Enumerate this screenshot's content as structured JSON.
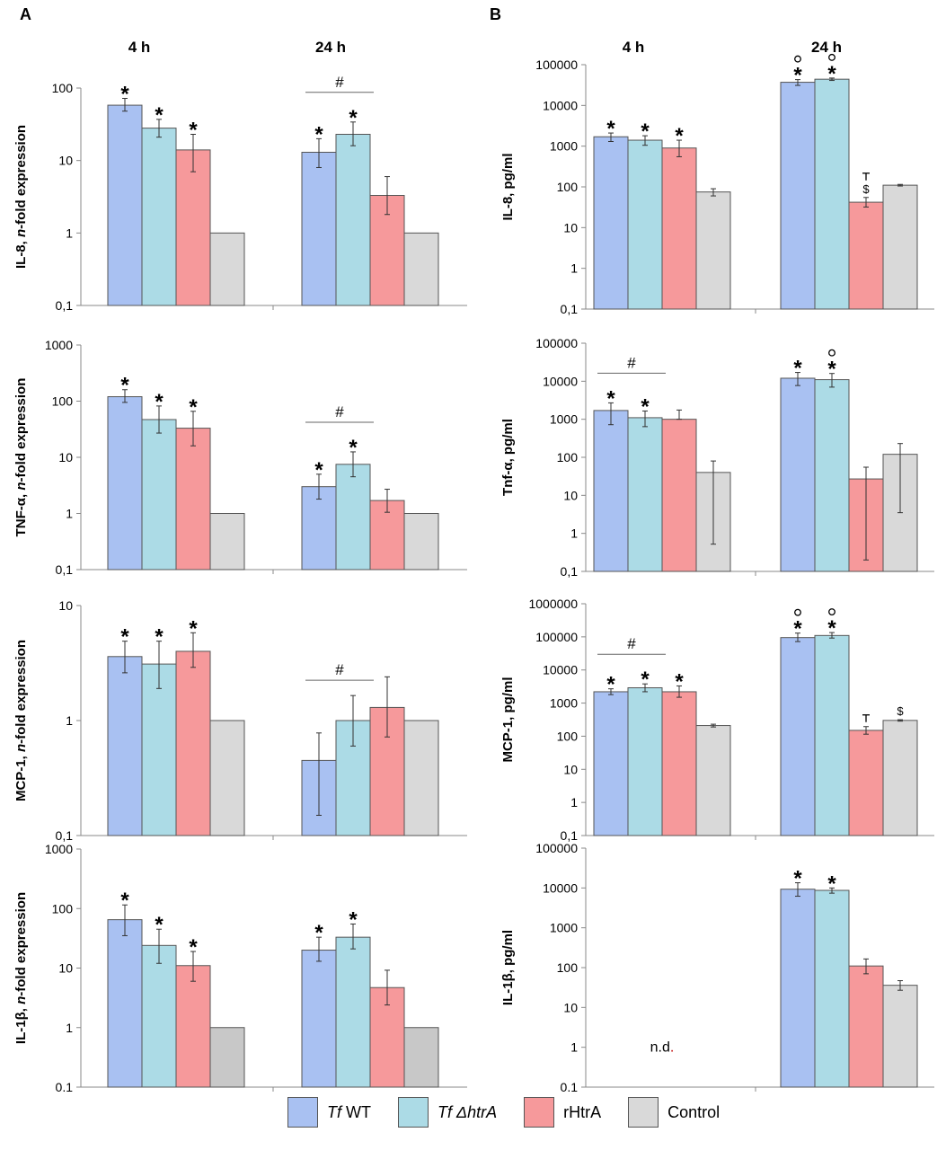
{
  "panel_labels": [
    "A",
    "B"
  ],
  "time_labels": [
    "4 h",
    "24 h"
  ],
  "series_colors": [
    "#a9c1f2",
    "#acdbe6",
    "#f6999b",
    "#d9d9d9"
  ],
  "legend": [
    {
      "name": "wt",
      "prefix": "Tf",
      "suffix": " WT",
      "color": "#a9c1f2"
    },
    {
      "name": "htra-mutant",
      "prefix": "Tf",
      "suffix": " ΔhtrA",
      "color": "#acdbe6"
    },
    {
      "name": "rhtra",
      "prefix": "",
      "suffix": "rHtrA",
      "color": "#f6999b"
    },
    {
      "name": "control",
      "prefix": "",
      "suffix": "Control",
      "color": "#d9d9d9"
    }
  ],
  "chart_data": [
    {
      "id": "A1",
      "type": "bar",
      "scale": "log",
      "ylabel": "IL-8, n-fold expression",
      "ylabel_prefix": "IL-8, ",
      "ylabel_italic": "n",
      "ylabel_suffix": "-fold expression",
      "ylim": [
        0.1,
        100
      ],
      "yticks": [
        "0,1",
        "1",
        "10",
        "100"
      ],
      "categories": [
        "4 h",
        "24 h"
      ],
      "groups": [
        {
          "values": [
            58,
            28,
            14,
            1
          ],
          "errors": [
            [
              48,
              72
            ],
            [
              21,
              37
            ],
            [
              7,
              23
            ],
            null
          ],
          "marks": [
            "*",
            "*",
            "*",
            ""
          ]
        },
        {
          "values": [
            13,
            23,
            3.3,
            1
          ],
          "errors": [
            [
              8,
              20
            ],
            [
              16,
              34
            ],
            [
              1.8,
              6
            ],
            null
          ],
          "marks": [
            "*",
            "*",
            "",
            ""
          ],
          "hash": true
        }
      ]
    },
    {
      "id": "B1",
      "type": "bar",
      "scale": "log",
      "ylabel": "IL-8, pg/ml",
      "ylabel_prefix": "IL-8, pg/ml",
      "ylabel_italic": "",
      "ylabel_suffix": "",
      "ylim": [
        0.1,
        100000
      ],
      "yticks": [
        "0,1",
        "1",
        "10",
        "100",
        "1000",
        "10000",
        "100000"
      ],
      "categories": [
        "4 h",
        "24 h"
      ],
      "groups": [
        {
          "values": [
            1700,
            1400,
            900,
            75
          ],
          "errors": [
            [
              1300,
              2100
            ],
            [
              1050,
              1800
            ],
            [
              550,
              1400
            ],
            [
              60,
              90
            ]
          ],
          "marks": [
            "*",
            "*",
            "*",
            ""
          ]
        },
        {
          "values": [
            37000,
            44000,
            42,
            110
          ],
          "errors": [
            [
              31000,
              43000
            ],
            [
              41000,
              47000
            ],
            [
              32,
              55
            ],
            [
              105,
              115
            ]
          ],
          "marks": [
            "*°",
            "*°",
            "$ᵀ",
            ""
          ]
        }
      ]
    },
    {
      "id": "A2",
      "type": "bar",
      "scale": "log",
      "ylabel": "TNF-α, n-fold expression",
      "ylabel_prefix": "TNF-α, ",
      "ylabel_italic": "n",
      "ylabel_suffix": "-fold expression",
      "ylim": [
        0.1,
        1000
      ],
      "yticks": [
        "0,1",
        "1",
        "10",
        "100",
        "1000"
      ],
      "categories": [
        "4 h",
        "24 h"
      ],
      "groups": [
        {
          "values": [
            120,
            47,
            33,
            1
          ],
          "errors": [
            [
              95,
              160
            ],
            [
              27,
              82
            ],
            [
              16,
              66
            ],
            null
          ],
          "marks": [
            "*",
            "*",
            "*",
            ""
          ]
        },
        {
          "values": [
            3,
            7.5,
            1.7,
            1
          ],
          "errors": [
            [
              1.8,
              5
            ],
            [
              4.5,
              12.5
            ],
            [
              1.05,
              2.7
            ],
            null
          ],
          "marks": [
            "*",
            "*",
            "",
            ""
          ],
          "hash": true
        }
      ]
    },
    {
      "id": "B2",
      "type": "bar",
      "scale": "log",
      "ylabel": "Tnf-α, pg/ml",
      "ylabel_prefix": "Tnf-α, pg/ml",
      "ylabel_italic": "",
      "ylabel_suffix": "",
      "ylim": [
        0.1,
        100000
      ],
      "yticks": [
        "0,1",
        "1",
        "10",
        "100",
        "1000",
        "10000",
        "100000"
      ],
      "categories": [
        "4 h",
        "24 h"
      ],
      "groups": [
        {
          "values": [
            1700,
            1100,
            1000,
            40
          ],
          "errors": [
            [
              720,
              2700
            ],
            [
              640,
              1650
            ],
            [
              1000,
              1750
            ],
            [
              0.52,
              80
            ]
          ],
          "marks": [
            "*",
            "*",
            "",
            ""
          ],
          "hash": true
        },
        {
          "values": [
            12000,
            11000,
            27,
            120
          ],
          "errors": [
            [
              7700,
              17000
            ],
            [
              7000,
              16000
            ],
            [
              0.2,
              55
            ],
            [
              3.5,
              230
            ]
          ],
          "marks": [
            "*",
            "*°",
            "",
            ""
          ]
        }
      ]
    },
    {
      "id": "A3",
      "type": "bar",
      "scale": "log",
      "ylabel": "MCP-1, n-fold expression",
      "ylabel_prefix": "MCP-1, ",
      "ylabel_italic": "n",
      "ylabel_suffix": "-fold expression",
      "ylim": [
        0.1,
        10
      ],
      "yticks": [
        "0,1",
        "1",
        "10"
      ],
      "categories": [
        "4 h",
        "24 h"
      ],
      "groups": [
        {
          "values": [
            3.6,
            3.1,
            4.0,
            1
          ],
          "errors": [
            [
              2.6,
              4.9
            ],
            [
              1.9,
              4.9
            ],
            [
              2.9,
              5.8
            ],
            null
          ],
          "marks": [
            "*",
            "*",
            "*",
            ""
          ]
        },
        {
          "values": [
            0.45,
            1.0,
            1.3,
            1
          ],
          "errors": [
            [
              0.15,
              0.78
            ],
            [
              0.6,
              1.65
            ],
            [
              0.72,
              2.4
            ],
            null
          ],
          "marks": [
            "",
            "",
            "",
            ""
          ],
          "hash": true
        }
      ]
    },
    {
      "id": "B3",
      "type": "bar",
      "scale": "log",
      "ylabel": "MCP-1, pg/ml",
      "ylabel_prefix": "MCP-1, pg/ml",
      "ylabel_italic": "",
      "ylabel_suffix": "",
      "ylim": [
        0.1,
        1000000
      ],
      "yticks": [
        "0,1",
        "1",
        "10",
        "100",
        "1000",
        "10000",
        "100000",
        "1000000"
      ],
      "categories": [
        "4 h",
        "24 h"
      ],
      "groups": [
        {
          "values": [
            2200,
            2900,
            2200,
            210
          ],
          "errors": [
            [
              1800,
              2700
            ],
            [
              2200,
              3800
            ],
            [
              1500,
              3300
            ],
            [
              190,
              230
            ]
          ],
          "marks": [
            "*",
            "*",
            "*",
            ""
          ],
          "hash": true
        },
        {
          "values": [
            95000,
            110000,
            150,
            300
          ],
          "errors": [
            [
              72000,
              130000
            ],
            [
              92000,
              135000
            ],
            [
              115,
              195
            ],
            [
              285,
              315
            ]
          ],
          "marks": [
            "*°",
            "*°",
            "ᵀ",
            "$"
          ]
        }
      ]
    },
    {
      "id": "A4",
      "type": "bar",
      "scale": "log",
      "ylabel": "IL-1β, n-fold expression",
      "ylabel_prefix": "IL-1β, ",
      "ylabel_italic": "n",
      "ylabel_suffix": "-fold expression",
      "ylim": [
        0.1,
        1000
      ],
      "yticks": [
        "0,1",
        "1",
        "10",
        "100",
        "1000"
      ],
      "categories": [
        "4 h",
        "24 h"
      ],
      "groups": [
        {
          "values": [
            65,
            24,
            11,
            1
          ],
          "errors": [
            [
              35,
              115
            ],
            [
              12,
              45
            ],
            [
              6,
              19
            ],
            null
          ],
          "marks": [
            "*",
            "*",
            "*",
            ""
          ]
        },
        {
          "values": [
            20,
            33,
            4.7,
            1
          ],
          "errors": [
            [
              13,
              33
            ],
            [
              21,
              55
            ],
            [
              2.4,
              9.2
            ],
            null
          ],
          "marks": [
            "*",
            "*",
            "",
            ""
          ]
        }
      ]
    },
    {
      "id": "B4",
      "type": "bar",
      "scale": "log",
      "ylabel": "IL-1β, pg/ml",
      "ylabel_prefix": "IL-1β, pg/ml",
      "ylabel_italic": "",
      "ylabel_suffix": "",
      "ylim": [
        0.1,
        100000
      ],
      "yticks": [
        "0,1",
        "1",
        "10",
        "100",
        "1000",
        "10000",
        "100000"
      ],
      "categories": [
        "4 h",
        "24 h"
      ],
      "groups": [
        {
          "nd": "n.d."
        },
        {
          "values": [
            9300,
            8700,
            110,
            36
          ],
          "errors": [
            [
              6200,
              13500
            ],
            [
              7400,
              10000
            ],
            [
              70,
              165
            ],
            [
              27,
              47
            ]
          ],
          "marks": [
            "*",
            "*",
            "",
            ""
          ]
        }
      ]
    }
  ]
}
